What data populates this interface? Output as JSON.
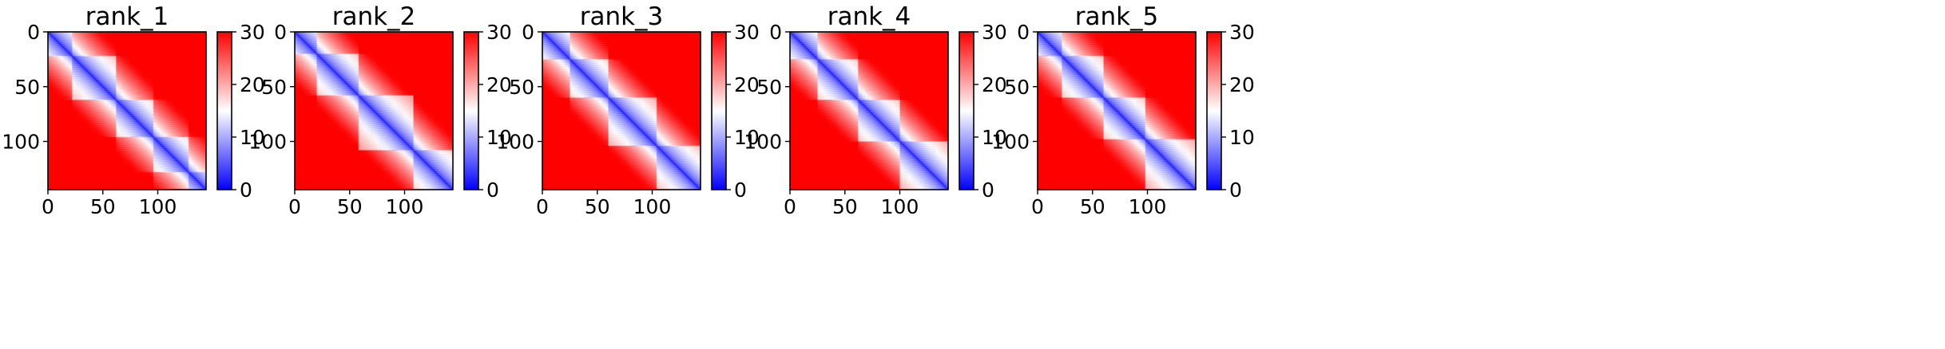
{
  "chart_data": [
    {
      "type": "heatmap",
      "title": "rank_1",
      "n": 144,
      "xticks": [
        0,
        50,
        100
      ],
      "yticks": [
        0,
        50,
        100
      ],
      "colorbar": {
        "min": 0,
        "max": 30,
        "ticks": [
          0,
          10,
          20,
          30
        ],
        "colormap": "bwr",
        "low_color": "#0000ff",
        "mid_color": "#ffffff",
        "high_color": "#ff0000"
      },
      "domains": [
        [
          0,
          22
        ],
        [
          22,
          62
        ],
        [
          62,
          96
        ],
        [
          96,
          128
        ],
        [
          128,
          144
        ]
      ]
    },
    {
      "type": "heatmap",
      "title": "rank_2",
      "n": 144,
      "xticks": [
        0,
        50,
        100
      ],
      "yticks": [
        0,
        50,
        100
      ],
      "colorbar": {
        "min": 0,
        "max": 30,
        "ticks": [
          0,
          10,
          20,
          30
        ],
        "colormap": "bwr",
        "low_color": "#0000ff",
        "mid_color": "#ffffff",
        "high_color": "#ff0000"
      },
      "domains": [
        [
          0,
          20
        ],
        [
          20,
          58
        ],
        [
          58,
          108
        ],
        [
          108,
          144
        ]
      ]
    },
    {
      "type": "heatmap",
      "title": "rank_3",
      "n": 144,
      "xticks": [
        0,
        50,
        100
      ],
      "yticks": [
        0,
        50,
        100
      ],
      "colorbar": {
        "min": 0,
        "max": 30,
        "ticks": [
          0,
          10,
          20,
          30
        ],
        "colormap": "bwr",
        "low_color": "#0000ff",
        "mid_color": "#ffffff",
        "high_color": "#ff0000"
      },
      "domains": [
        [
          0,
          25
        ],
        [
          25,
          60
        ],
        [
          60,
          104
        ],
        [
          104,
          144
        ]
      ]
    },
    {
      "type": "heatmap",
      "title": "rank_4",
      "n": 144,
      "xticks": [
        0,
        50,
        100
      ],
      "yticks": [
        0,
        50,
        100
      ],
      "colorbar": {
        "min": 0,
        "max": 30,
        "ticks": [
          0,
          10,
          20,
          30
        ],
        "colormap": "bwr",
        "low_color": "#0000ff",
        "mid_color": "#ffffff",
        "high_color": "#ff0000"
      },
      "domains": [
        [
          0,
          25
        ],
        [
          25,
          62
        ],
        [
          62,
          100
        ],
        [
          100,
          144
        ]
      ]
    },
    {
      "type": "heatmap",
      "title": "rank_5",
      "n": 144,
      "xticks": [
        0,
        50,
        100
      ],
      "yticks": [
        0,
        50,
        100
      ],
      "colorbar": {
        "min": 0,
        "max": 30,
        "ticks": [
          0,
          10,
          20,
          30
        ],
        "colormap": "bwr",
        "low_color": "#0000ff",
        "mid_color": "#ffffff",
        "high_color": "#ff0000"
      },
      "domains": [
        [
          0,
          22
        ],
        [
          22,
          60
        ],
        [
          60,
          98
        ],
        [
          98,
          144
        ]
      ]
    }
  ]
}
